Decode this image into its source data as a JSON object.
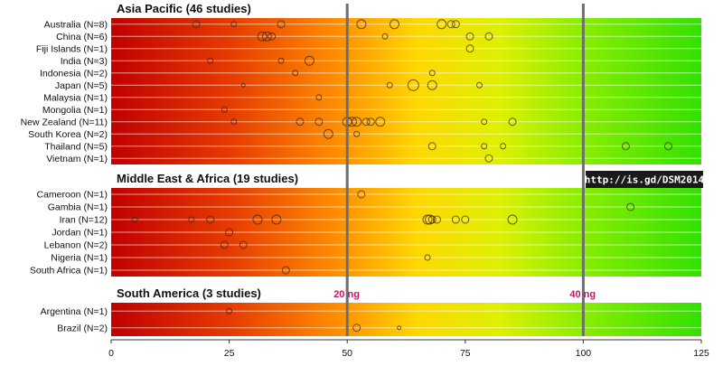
{
  "chart_data": {
    "type": "scatter",
    "xlim": [
      0,
      125
    ],
    "x_ticks": [
      "0",
      "25",
      "50",
      "75",
      "100",
      "125"
    ],
    "grid": true,
    "reference_lines": [
      {
        "value": 50,
        "label": "20 ng"
      },
      {
        "value": 100,
        "label": "40 ng"
      }
    ],
    "annotation": "http://is.gd/DSM2014",
    "sections": [
      {
        "title": "Asia Pacific (46 studies)",
        "rows": [
          {
            "label": "Australia (N=8)",
            "points": [
              {
                "x": 18,
                "s": 4
              },
              {
                "x": 26,
                "s": 3
              },
              {
                "x": 36,
                "s": 4
              },
              {
                "x": 53,
                "s": 5
              },
              {
                "x": 60,
                "s": 5
              },
              {
                "x": 70,
                "s": 5
              },
              {
                "x": 72,
                "s": 4
              },
              {
                "x": 73,
                "s": 4
              }
            ]
          },
          {
            "label": "China (N=6)",
            "points": [
              {
                "x": 32,
                "s": 5
              },
              {
                "x": 33,
                "s": 5
              },
              {
                "x": 34,
                "s": 4
              },
              {
                "x": 58,
                "s": 3
              },
              {
                "x": 76,
                "s": 4
              },
              {
                "x": 80,
                "s": 4
              }
            ]
          },
          {
            "label": "Fiji Islands (N=1)",
            "points": [
              {
                "x": 76,
                "s": 4
              }
            ]
          },
          {
            "label": "India (N=3)",
            "points": [
              {
                "x": 21,
                "s": 3
              },
              {
                "x": 36,
                "s": 3
              },
              {
                "x": 42,
                "s": 5
              }
            ]
          },
          {
            "label": "Indonesia (N=2)",
            "points": [
              {
                "x": 39,
                "s": 3
              },
              {
                "x": 68,
                "s": 3
              }
            ]
          },
          {
            "label": "Japan (N=5)",
            "points": [
              {
                "x": 28,
                "s": 2
              },
              {
                "x": 59,
                "s": 3
              },
              {
                "x": 64,
                "s": 6
              },
              {
                "x": 68,
                "s": 5
              },
              {
                "x": 78,
                "s": 3
              }
            ]
          },
          {
            "label": "Malaysia (N=1)",
            "points": [
              {
                "x": 44,
                "s": 3
              }
            ]
          },
          {
            "label": "Mongolia (N=1)",
            "points": [
              {
                "x": 24,
                "s": 3
              }
            ]
          },
          {
            "label": "New Zealand (N=11)",
            "points": [
              {
                "x": 26,
                "s": 3
              },
              {
                "x": 40,
                "s": 4
              },
              {
                "x": 44,
                "s": 4
              },
              {
                "x": 50,
                "s": 5
              },
              {
                "x": 51,
                "s": 5
              },
              {
                "x": 52,
                "s": 5
              },
              {
                "x": 54,
                "s": 4
              },
              {
                "x": 55,
                "s": 4
              },
              {
                "x": 57,
                "s": 5
              },
              {
                "x": 79,
                "s": 3
              },
              {
                "x": 85,
                "s": 4
              }
            ]
          },
          {
            "label": "South Korea (N=2)",
            "points": [
              {
                "x": 46,
                "s": 5
              },
              {
                "x": 52,
                "s": 3
              }
            ]
          },
          {
            "label": "Thailand (N=5)",
            "points": [
              {
                "x": 68,
                "s": 4
              },
              {
                "x": 79,
                "s": 3
              },
              {
                "x": 83,
                "s": 3
              },
              {
                "x": 109,
                "s": 4
              },
              {
                "x": 118,
                "s": 4
              }
            ]
          },
          {
            "label": "Vietnam (N=1)",
            "points": [
              {
                "x": 80,
                "s": 4
              }
            ]
          }
        ]
      },
      {
        "title": "Middle East & Africa (19 studies)",
        "rows": [
          {
            "label": "Cameroon (N=1)",
            "points": [
              {
                "x": 53,
                "s": 4
              }
            ]
          },
          {
            "label": "Gambia (N=1)",
            "points": [
              {
                "x": 110,
                "s": 4
              }
            ]
          },
          {
            "label": "Iran (N=12)",
            "points": [
              {
                "x": 5,
                "s": 3
              },
              {
                "x": 17,
                "s": 3
              },
              {
                "x": 21,
                "s": 4
              },
              {
                "x": 31,
                "s": 5
              },
              {
                "x": 35,
                "s": 5
              },
              {
                "x": 67,
                "s": 5
              },
              {
                "x": 67.5,
                "s": 5
              },
              {
                "x": 68,
                "s": 4
              },
              {
                "x": 69,
                "s": 4
              },
              {
                "x": 73,
                "s": 4
              },
              {
                "x": 75,
                "s": 4
              },
              {
                "x": 85,
                "s": 5
              }
            ]
          },
          {
            "label": "Jordan (N=1)",
            "points": [
              {
                "x": 25,
                "s": 4
              }
            ]
          },
          {
            "label": "Lebanon (N=2)",
            "points": [
              {
                "x": 24,
                "s": 4
              },
              {
                "x": 28,
                "s": 4
              }
            ]
          },
          {
            "label": "Nigeria (N=1)",
            "points": [
              {
                "x": 67,
                "s": 3
              }
            ]
          },
          {
            "label": "South Africa (N=1)",
            "points": [
              {
                "x": 37,
                "s": 4
              }
            ]
          }
        ]
      },
      {
        "title": "South America (3 studies)",
        "rows": [
          {
            "label": "Argentina (N=1)",
            "points": [
              {
                "x": 25,
                "s": 3
              }
            ]
          },
          {
            "label": "Brazil (N=2)",
            "points": [
              {
                "x": 52,
                "s": 4
              },
              {
                "x": 61,
                "s": 2
              }
            ]
          }
        ]
      }
    ]
  }
}
